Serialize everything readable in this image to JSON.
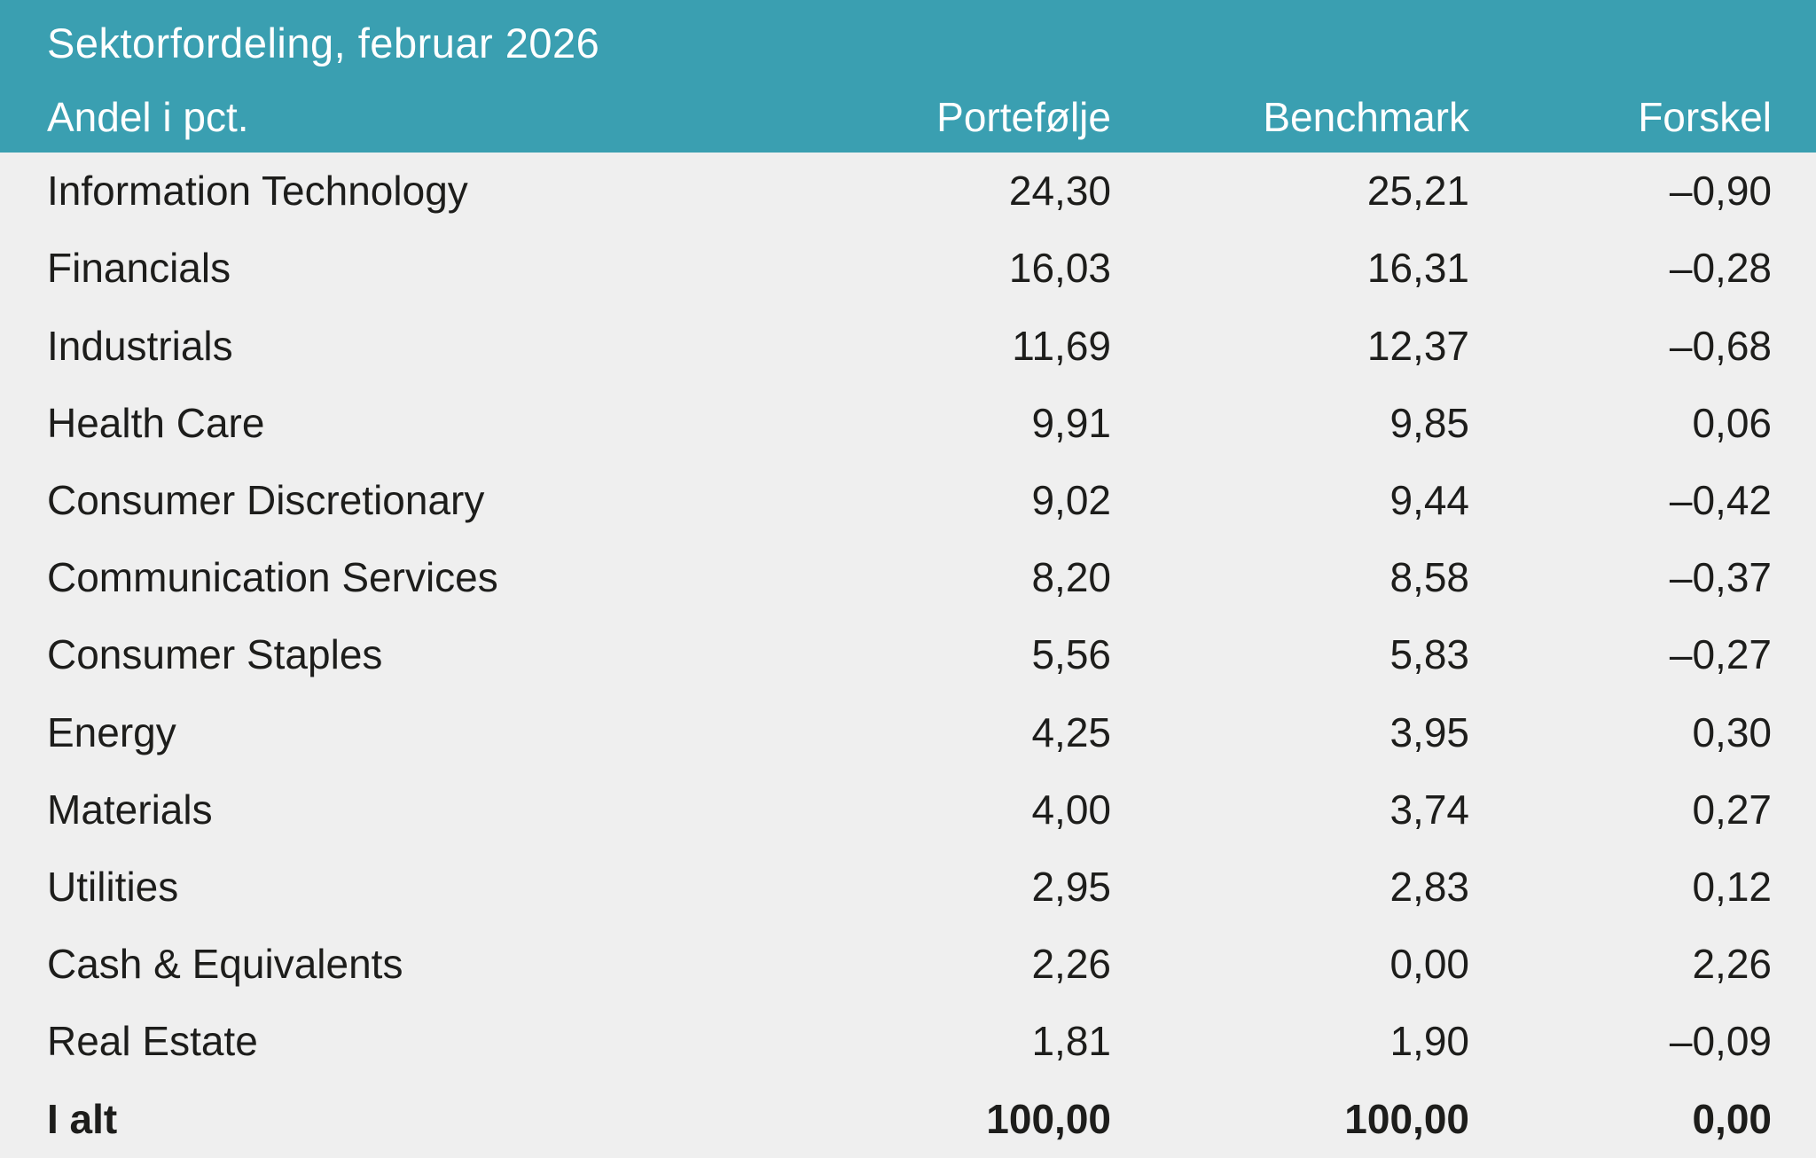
{
  "header": {
    "title": "Sektorfordeling, februar 2026",
    "columns": [
      "Andel i pct.",
      "Portefølje",
      "Benchmark",
      "Forskel"
    ]
  },
  "table": {
    "rows": [
      {
        "sector": "Information Technology",
        "portfolio": "24,30",
        "benchmark": "25,21",
        "difference": "–0,90"
      },
      {
        "sector": "Financials",
        "portfolio": "16,03",
        "benchmark": "16,31",
        "difference": "–0,28"
      },
      {
        "sector": "Industrials",
        "portfolio": "11,69",
        "benchmark": "12,37",
        "difference": "–0,68"
      },
      {
        "sector": "Health Care",
        "portfolio": "9,91",
        "benchmark": "9,85",
        "difference": "0,06"
      },
      {
        "sector": "Consumer Discretionary",
        "portfolio": "9,02",
        "benchmark": "9,44",
        "difference": "–0,42"
      },
      {
        "sector": "Communication Services",
        "portfolio": "8,20",
        "benchmark": "8,58",
        "difference": "–0,37"
      },
      {
        "sector": "Consumer Staples",
        "portfolio": "5,56",
        "benchmark": "5,83",
        "difference": "–0,27"
      },
      {
        "sector": "Energy",
        "portfolio": "4,25",
        "benchmark": "3,95",
        "difference": "0,30"
      },
      {
        "sector": "Materials",
        "portfolio": "4,00",
        "benchmark": "3,74",
        "difference": "0,27"
      },
      {
        "sector": "Utilities",
        "portfolio": "2,95",
        "benchmark": "2,83",
        "difference": "0,12"
      },
      {
        "sector": "Cash & Equivalents",
        "portfolio": "2,26",
        "benchmark": "0,00",
        "difference": "2,26"
      },
      {
        "sector": "Real Estate",
        "portfolio": "1,81",
        "benchmark": "1,90",
        "difference": "–0,09"
      }
    ],
    "total": {
      "sector": "I alt",
      "portfolio": "100,00",
      "benchmark": "100,00",
      "difference": "0,00"
    }
  },
  "colors": {
    "header_background": "#3a9fb1",
    "header_text": "#ffffff",
    "body_background": "#efefef",
    "body_text": "#1d1d1b"
  }
}
